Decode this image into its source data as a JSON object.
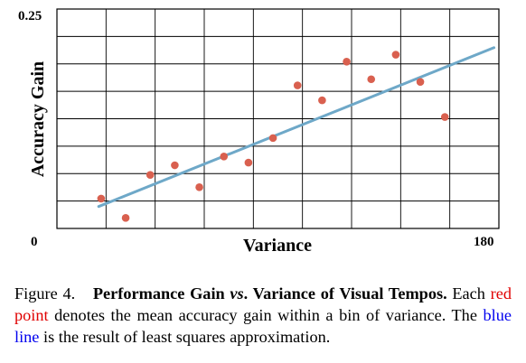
{
  "chart_data": {
    "type": "scatter",
    "xlabel": "Variance",
    "ylabel": "Accuracy Gain",
    "xlim": [
      0,
      180
    ],
    "ylim": [
      0,
      0.25
    ],
    "x_tick_labels": [
      "0",
      "180"
    ],
    "y_tick_labels": [
      "0.25"
    ],
    "x_grid_count": 9,
    "y_grid_count": 8,
    "grid": true,
    "points_color": "#d9604f",
    "line_color": "#6ea8c8",
    "points": {
      "x": [
        18,
        28,
        38,
        48,
        58,
        68,
        78,
        88,
        98,
        108,
        118,
        128,
        138,
        148,
        158
      ],
      "y": [
        0.034,
        0.012,
        0.061,
        0.072,
        0.047,
        0.082,
        0.075,
        0.103,
        0.163,
        0.146,
        0.19,
        0.17,
        0.198,
        0.167,
        0.127
      ]
    },
    "fit_line": {
      "x": [
        17,
        178
      ],
      "y": [
        0.025,
        0.206
      ]
    }
  },
  "caption": {
    "figure_label": "Figure 4.",
    "title_part1": "Performance Gain",
    "title_vs": "vs",
    "title_part2": ". Variance of Visual Tempos.",
    "text_1": "Each",
    "red_text": "red point",
    "text_2": "denotes the mean accuracy gain within a bin of variance. The",
    "blue_text": "blue line",
    "text_3": "is the result of least squares approximation."
  }
}
